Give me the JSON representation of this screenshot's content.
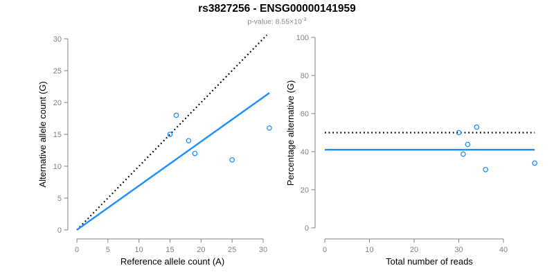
{
  "header": {
    "title": "rs3827256 - ENSG00000141959",
    "pvalue_text": "p-value: 8.55×10",
    "pvalue_exponent": "-3"
  },
  "colors": {
    "accent_blue": "#1E90FF",
    "axis_gray": "#828282",
    "line_black": "#000000",
    "subtitle_gray": "#8a8a8a"
  },
  "chart_data": [
    {
      "type": "scatter",
      "xlabel": "Reference allele count (A)",
      "ylabel": "Alternative allele count (G)",
      "xticks": [
        0,
        5,
        10,
        15,
        20,
        25,
        30
      ],
      "yticks": [
        0,
        5,
        10,
        15,
        20,
        25,
        30
      ],
      "xlim": [
        0,
        31
      ],
      "ylim": [
        0,
        31
      ],
      "grid": false,
      "point_style": "open-circle",
      "point_color": "#1E90FF",
      "points": [
        {
          "x": 16,
          "y": 18
        },
        {
          "x": 15,
          "y": 15
        },
        {
          "x": 18,
          "y": 14
        },
        {
          "x": 19,
          "y": 12
        },
        {
          "x": 25,
          "y": 11
        },
        {
          "x": 31,
          "y": 16
        }
      ],
      "lines": [
        {
          "name": "identity-line",
          "x1": 0,
          "y1": 0,
          "x2": 30.6,
          "y2": 30.6,
          "color": "#000000",
          "width": 2.2,
          "dashed": true
        },
        {
          "name": "fitted-proportion-line",
          "x1": 0,
          "y1": 0,
          "x2": 31,
          "y2": 21.5,
          "color": "#1E90FF",
          "width": 2.5,
          "dashed": false
        }
      ]
    },
    {
      "type": "scatter",
      "xlabel": "Total number of reads",
      "ylabel": "Percentage alternative (G)",
      "xticks": [
        0,
        10,
        20,
        30,
        40
      ],
      "yticks": [
        0,
        20,
        40,
        60,
        80,
        100
      ],
      "xlim": [
        0,
        47
      ],
      "ylim": [
        0,
        100
      ],
      "grid": false,
      "point_style": "open-circle",
      "point_color": "#1E90FF",
      "points": [
        {
          "x": 34,
          "y": 52.9
        },
        {
          "x": 30,
          "y": 50
        },
        {
          "x": 32,
          "y": 43.8
        },
        {
          "x": 31,
          "y": 38.7
        },
        {
          "x": 36,
          "y": 30.6
        },
        {
          "x": 47,
          "y": 34
        }
      ],
      "lines": [
        {
          "name": "null-50pct-line",
          "x1": 0,
          "y1": 50,
          "x2": 47,
          "y2": 50,
          "color": "#000000",
          "width": 2.2,
          "dashed": true
        },
        {
          "name": "estimated-pct-line",
          "x1": 0,
          "y1": 41,
          "x2": 47,
          "y2": 41,
          "color": "#1E90FF",
          "width": 2.5,
          "dashed": false
        }
      ]
    }
  ]
}
